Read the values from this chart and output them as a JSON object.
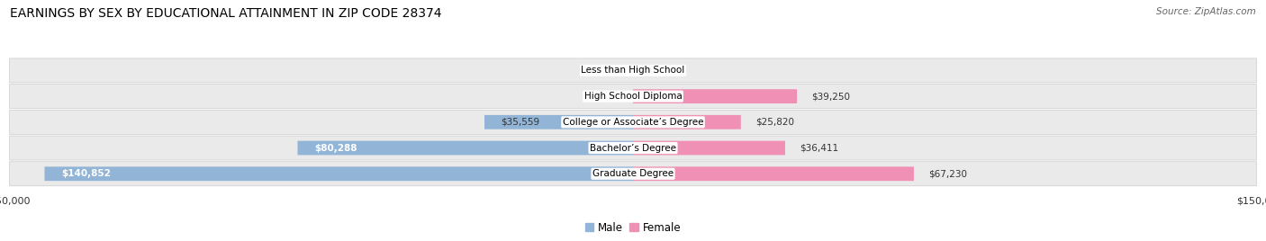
{
  "title": "EARNINGS BY SEX BY EDUCATIONAL ATTAINMENT IN ZIP CODE 28374",
  "source": "Source: ZipAtlas.com",
  "categories": [
    "Less than High School",
    "High School Diploma",
    "College or Associate’s Degree",
    "Bachelor’s Degree",
    "Graduate Degree"
  ],
  "male_values": [
    0,
    0,
    35559,
    80288,
    140852
  ],
  "female_values": [
    0,
    39250,
    25820,
    36411,
    67230
  ],
  "male_color": "#92B4D6",
  "female_color": "#F090B4",
  "row_bg_color": "#EAEAEA",
  "row_bg_color_alt": "#E0E0E8",
  "max_value": 150000,
  "title_fontsize": 10,
  "source_fontsize": 7.5,
  "tick_fontsize": 8,
  "bar_label_fontsize": 7.5,
  "category_fontsize": 7.5,
  "legend_fontsize": 8.5
}
